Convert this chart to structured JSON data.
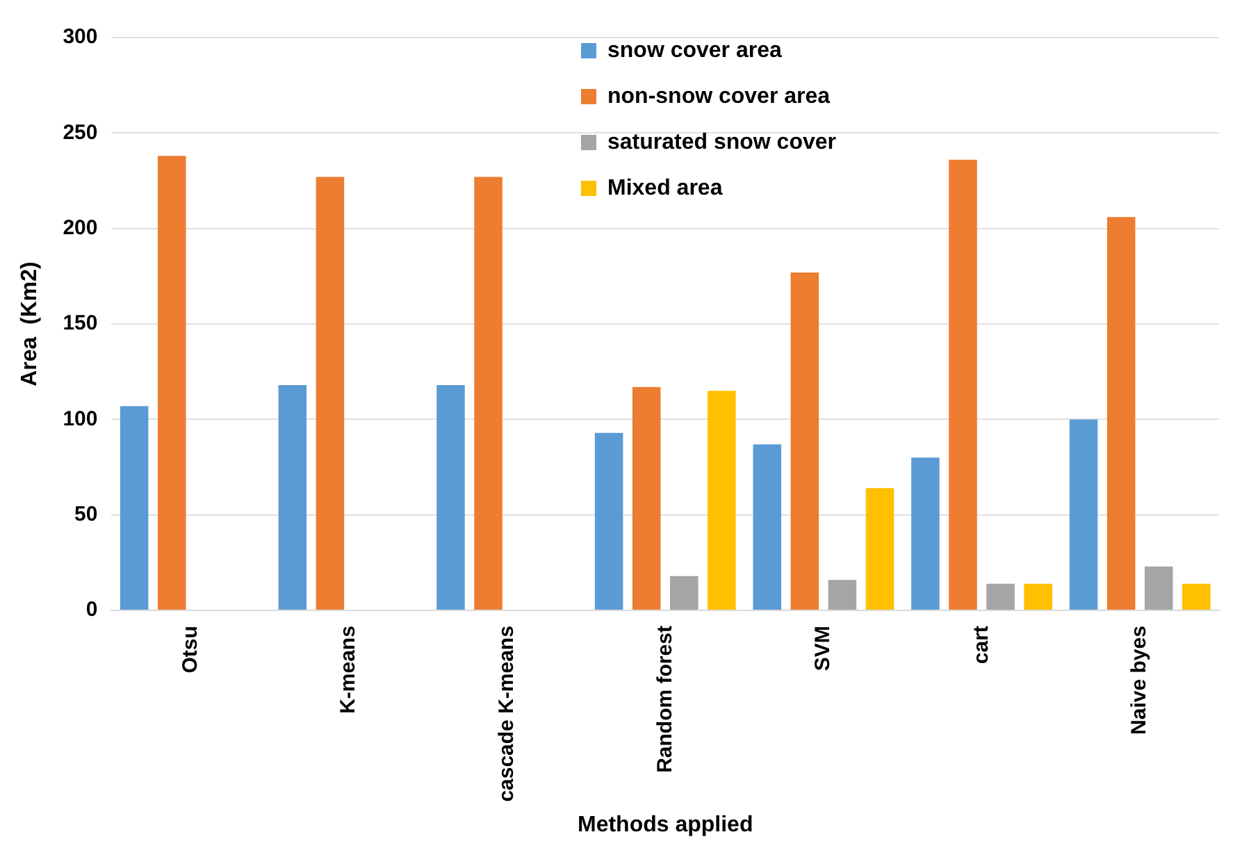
{
  "chart_data": {
    "type": "bar",
    "xlabel": "Methods applied",
    "ylabel": "Area  (Km2)",
    "categories": [
      "Otsu",
      "K-means",
      "cascade K-means",
      "Random forest",
      "SVM",
      "cart",
      "Naive byes"
    ],
    "series": [
      {
        "name": "snow cover area",
        "color": "#5b9bd5",
        "values": [
          107,
          118,
          118,
          93,
          87,
          80,
          100
        ]
      },
      {
        "name": "non-snow cover area",
        "color": "#ed7d31",
        "values": [
          238,
          227,
          227,
          117,
          177,
          236,
          206
        ]
      },
      {
        "name": "saturated snow cover",
        "color": "#a5a5a5",
        "values": [
          null,
          null,
          null,
          18,
          16,
          14,
          23
        ]
      },
      {
        "name": "Mixed area",
        "color": "#ffc000",
        "values": [
          null,
          null,
          null,
          115,
          64,
          14,
          14
        ]
      }
    ],
    "ylim": [
      0,
      300
    ],
    "yticks": [
      0,
      50,
      100,
      150,
      200,
      250,
      300
    ],
    "grid": "y",
    "legend": "top"
  }
}
